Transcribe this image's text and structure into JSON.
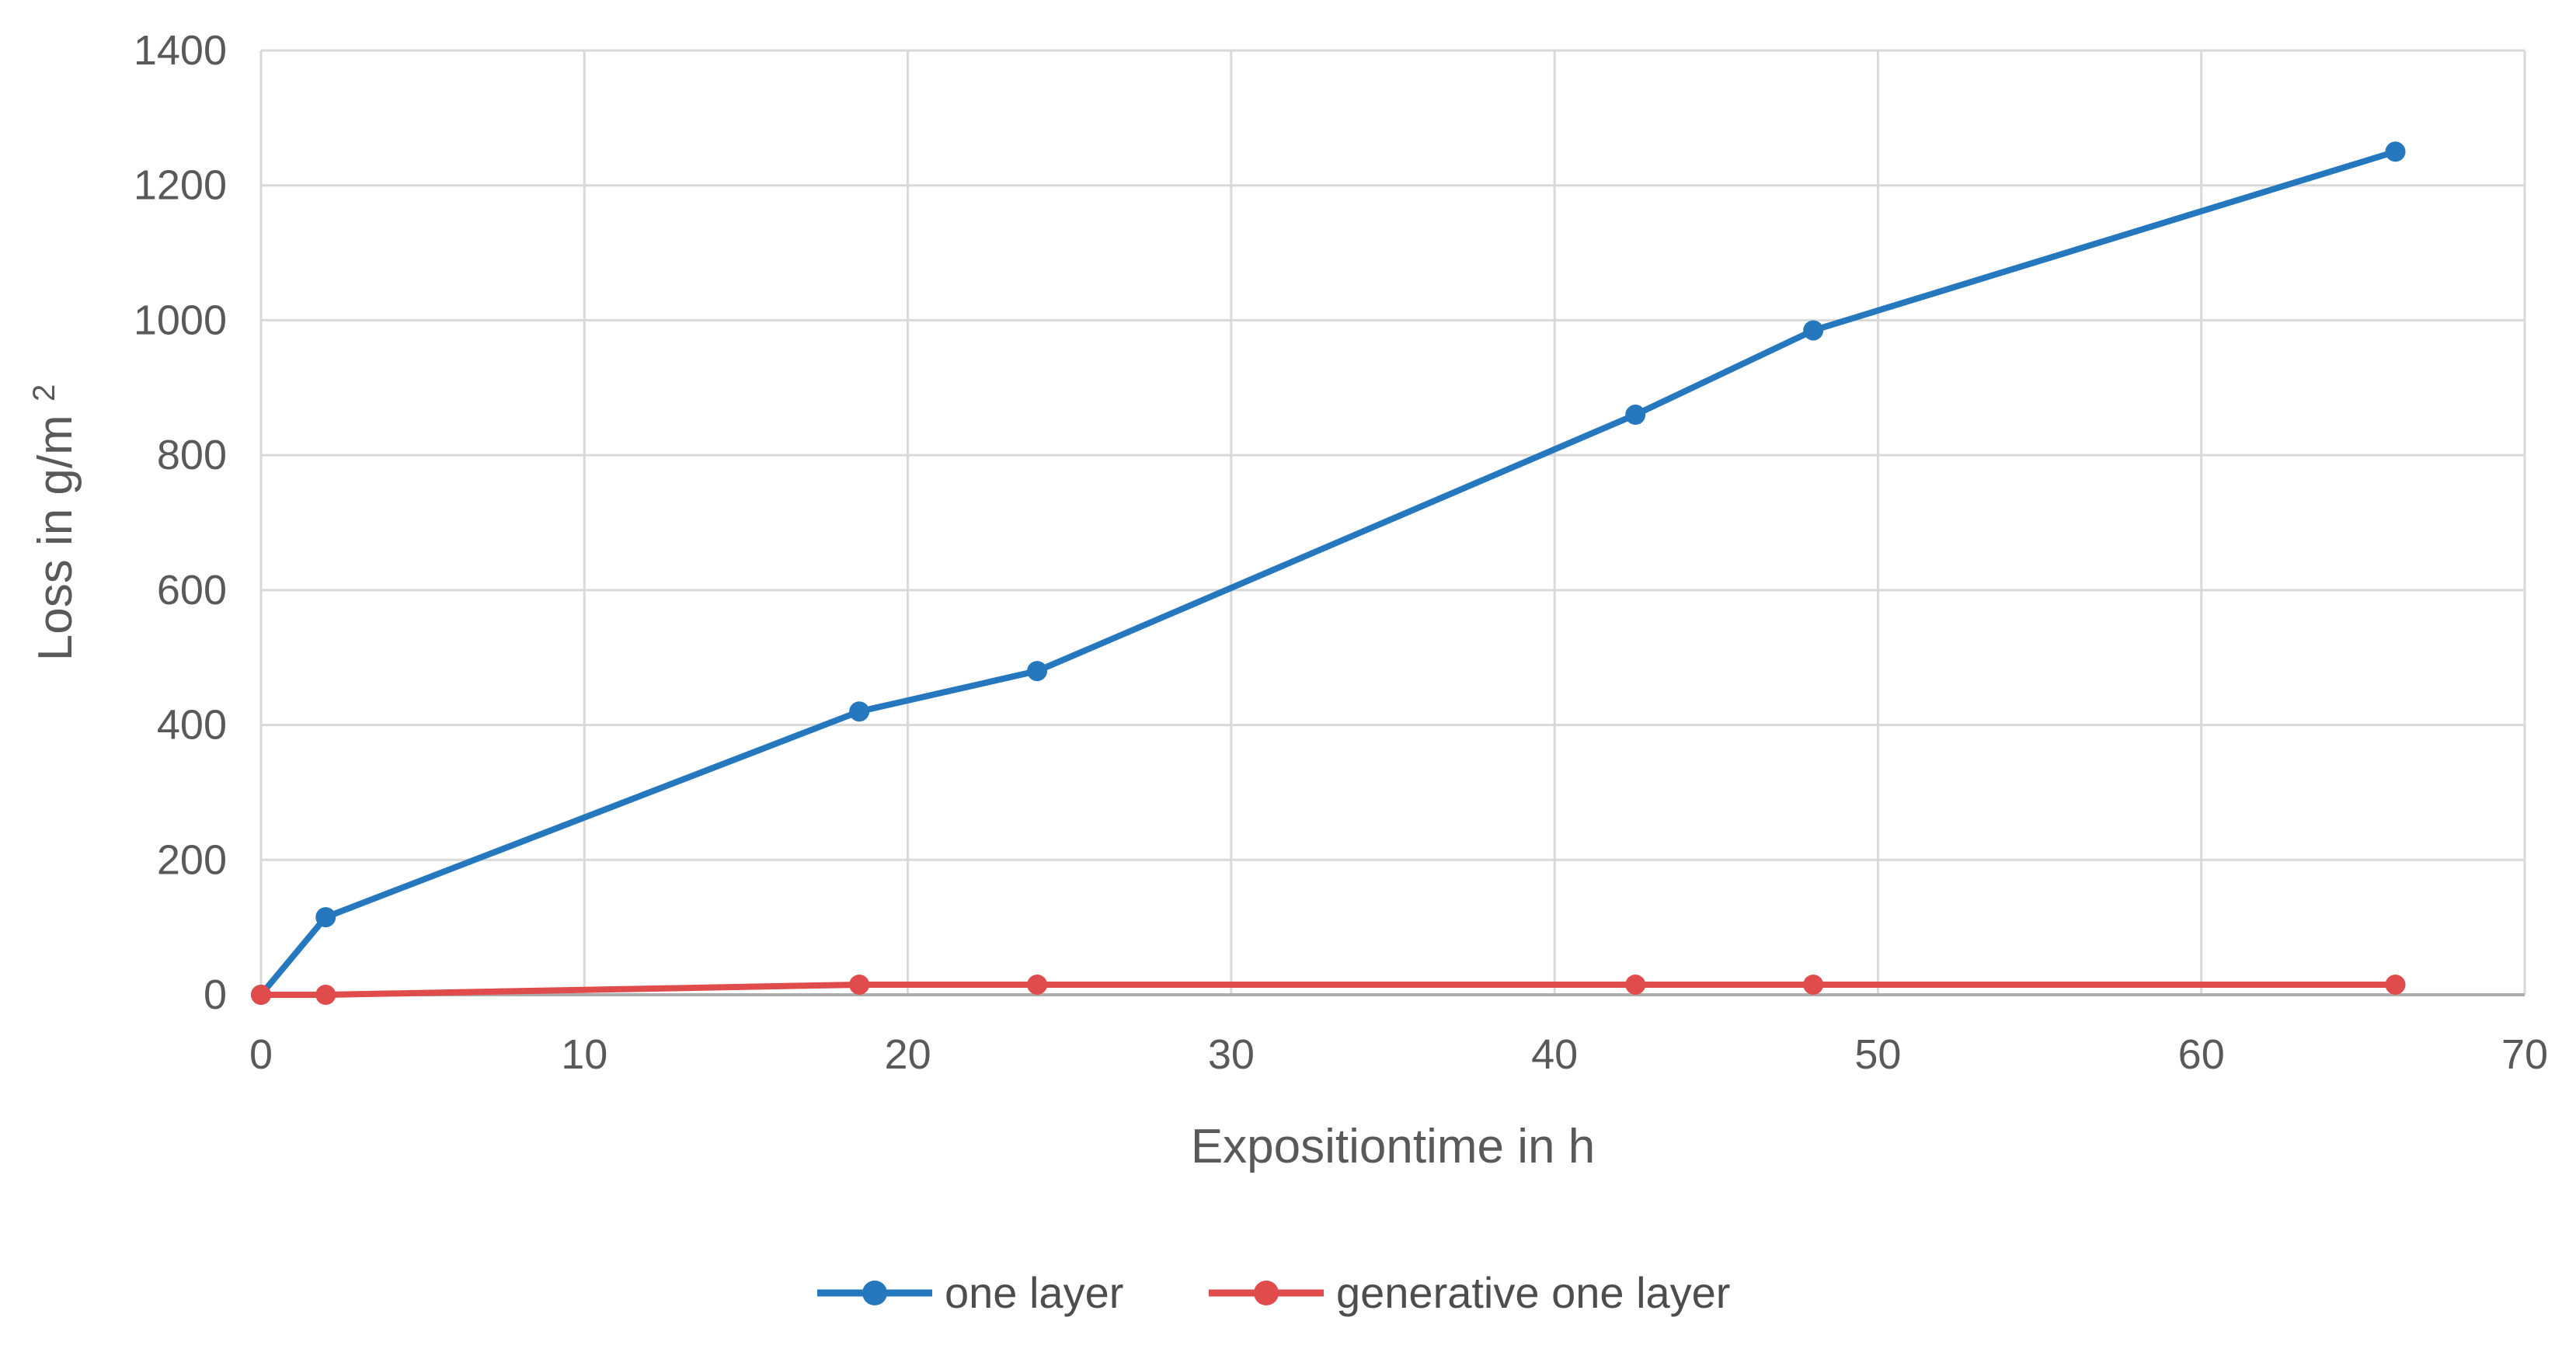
{
  "chart_data": {
    "type": "line",
    "x": [
      0,
      2,
      18.5,
      24,
      42.5,
      48,
      66
    ],
    "series": [
      {
        "name": "one layer",
        "color": "#2578BE",
        "values": [
          0,
          115,
          420,
          480,
          860,
          985,
          1250
        ]
      },
      {
        "name": "generative one layer",
        "color": "#E04B4B",
        "values": [
          0,
          0,
          15,
          15,
          15,
          15,
          15
        ]
      }
    ],
    "title": "",
    "xlabel": "Expositiontime in h",
    "ylabel": "Loss in g/m²",
    "ylabel_base": "Loss in g/m",
    "ylabel_superscript": "2",
    "xlim": [
      0,
      70
    ],
    "ylim": [
      0,
      1400
    ],
    "xticks": [
      0,
      10,
      20,
      30,
      40,
      50,
      60,
      70
    ],
    "yticks": [
      0,
      200,
      400,
      600,
      800,
      1000,
      1200,
      1400
    ],
    "grid": true,
    "legend_position": "bottom-center",
    "colors": {
      "gridline": "#D9D9D9",
      "axis_line": "#ADADAD",
      "tick_text": "#595959",
      "axis_title_text": "#595959",
      "legend_text": "#4D4D4D",
      "background": "#FFFFFF"
    }
  }
}
